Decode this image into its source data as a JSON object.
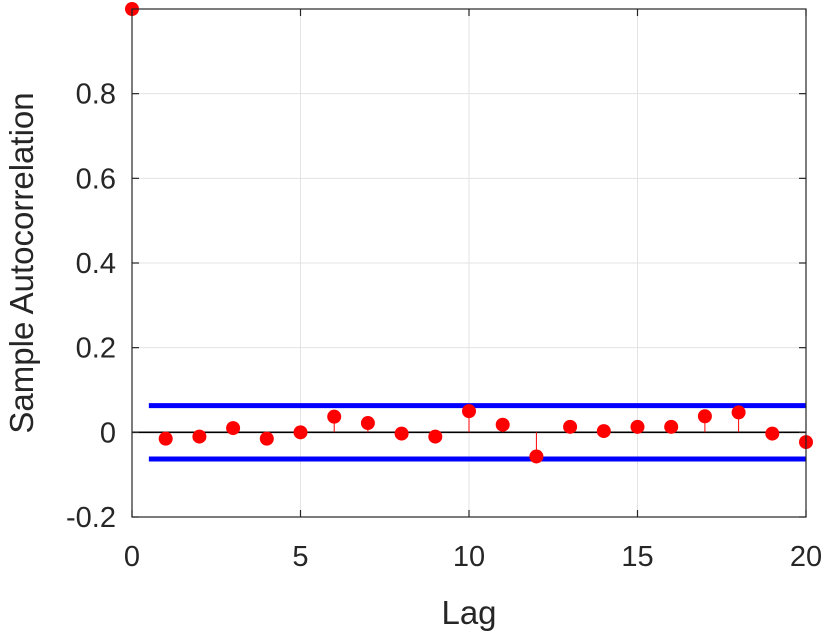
{
  "chart_data": {
    "type": "stem",
    "xlabel": "Lag",
    "ylabel": "Sample Autocorrelation",
    "xlim": [
      0,
      20
    ],
    "ylim": [
      -0.2,
      1.0
    ],
    "x_ticks": [
      0,
      5,
      10,
      15,
      20
    ],
    "x_tick_labels": [
      "0",
      "5",
      "10",
      "15",
      "20"
    ],
    "y_ticks": [
      -0.2,
      0,
      0.2,
      0.4,
      0.6,
      0.8
    ],
    "y_tick_labels": [
      "-0.2",
      "0",
      "0.2",
      "0.4",
      "0.6",
      "0.8"
    ],
    "grid": true,
    "series": [
      {
        "x": [
          0,
          1,
          2,
          3,
          4,
          5,
          6,
          7,
          8,
          9,
          10,
          11,
          12,
          13,
          14,
          15,
          16,
          17,
          18,
          19,
          20
        ],
        "values": [
          1.0,
          -0.015,
          -0.01,
          0.01,
          -0.015,
          0.0,
          0.037,
          0.022,
          -0.003,
          -0.01,
          0.05,
          0.018,
          -0.057,
          0.013,
          0.003,
          0.013,
          0.013,
          0.038,
          0.047,
          -0.003,
          -0.023
        ],
        "color": "#ff0000"
      }
    ],
    "confidence_bounds": {
      "upper": 0.063,
      "lower": -0.063,
      "x_range": [
        0.5,
        20
      ],
      "color": "#0000ff"
    },
    "zero_line_color": "#000000"
  }
}
